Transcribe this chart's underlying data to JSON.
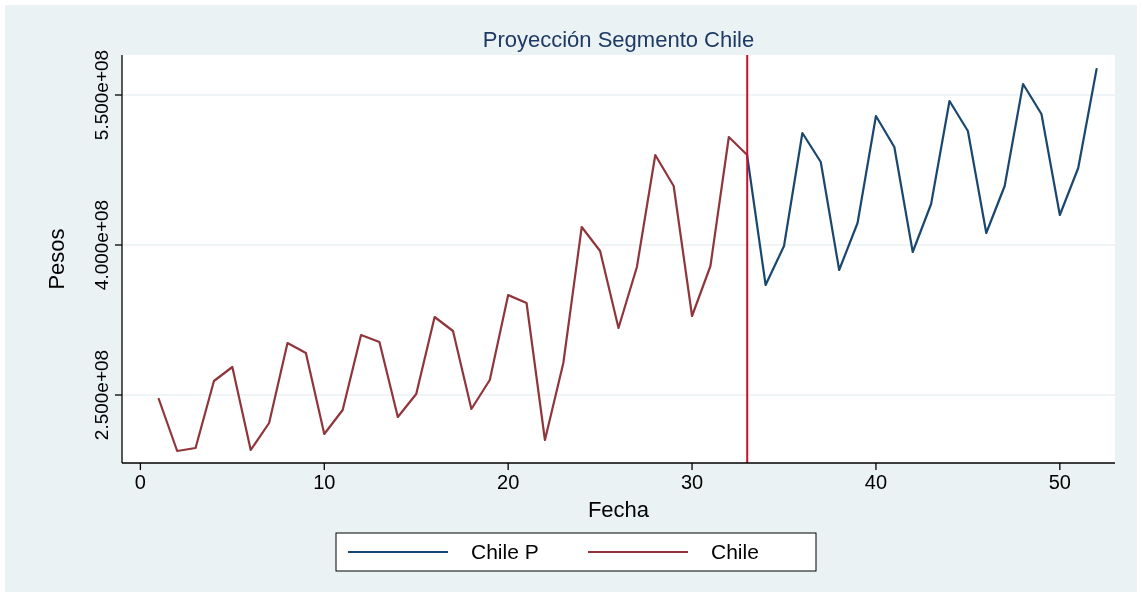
{
  "chart_data": {
    "type": "line",
    "title": "Proyección Segmento Chile",
    "xlabel": "Fecha",
    "ylabel": "Pesos",
    "xlim": [
      -1,
      53
    ],
    "xticks": [
      0,
      10,
      20,
      30,
      40,
      50
    ],
    "ylim": [
      182000000,
      590000000
    ],
    "yticks": [
      {
        "value": 250000000,
        "label": "2.500e+08"
      },
      {
        "value": 400000000,
        "label": "4.000e+08"
      },
      {
        "value": 550000000,
        "label": "5.500e+08"
      }
    ],
    "grid": "y",
    "legend": "bottom",
    "line_style": "solid",
    "ref_lines": [
      {
        "axis": "x",
        "value": 33,
        "color": "#c8102e"
      }
    ],
    "series": [
      {
        "name": "Chile P",
        "color": "#1a476f",
        "x": [
          33,
          34,
          35,
          36,
          37,
          38,
          39,
          40,
          41,
          42,
          43,
          44,
          45,
          46,
          47,
          48,
          49,
          50,
          51,
          52
        ],
        "values": [
          489000000,
          360000000,
          399000000,
          512000000,
          483000000,
          375000000,
          422000000,
          529000000,
          498000000,
          393000000,
          441000000,
          544000000,
          514000000,
          412000000,
          459000000,
          561000000,
          531000000,
          430000000,
          477000000,
          576000000
        ]
      },
      {
        "name": "Chile",
        "color": "#90353b",
        "x": [
          1,
          2,
          3,
          4,
          5,
          6,
          7,
          8,
          9,
          10,
          11,
          12,
          13,
          14,
          15,
          16,
          17,
          18,
          19,
          20,
          21,
          22,
          23,
          24,
          25,
          26,
          27,
          28,
          29,
          30,
          31,
          32,
          33
        ],
        "values": [
          246000000,
          194000000,
          197000000,
          264000000,
          278000000,
          195000000,
          222000000,
          302000000,
          292000000,
          211000000,
          235000000,
          310000000,
          303000000,
          228000000,
          251000000,
          328000000,
          314000000,
          236000000,
          265000000,
          350000000,
          342000000,
          205000000,
          282000000,
          418000000,
          394000000,
          317000000,
          378000000,
          490000000,
          459000000,
          329000000,
          379000000,
          508000000,
          490000000
        ]
      }
    ]
  }
}
